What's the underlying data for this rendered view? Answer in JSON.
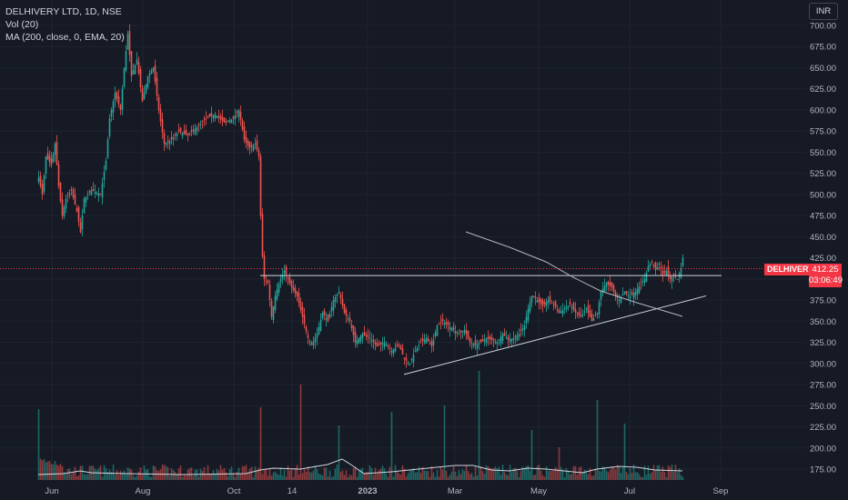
{
  "title": "DELHIVERY LTD, 1D, NSE",
  "indicators": {
    "volume": "Vol (20)",
    "ma": "MA (200, close, 0, EMA, 20)"
  },
  "currency": "INR",
  "symbol": "DELHIVERY",
  "last_price": "412.25",
  "countdown": "03:06:49",
  "colors": {
    "up": "#26a69a",
    "down": "#ef5350",
    "bg": "#161a25",
    "tag": "#f23645",
    "line": "#d1d4dc"
  },
  "chart_data": {
    "type": "candlestick",
    "title": "DELHIVERY LTD, 1D, NSE",
    "y_ticks": [
      175,
      200,
      225,
      250,
      275,
      300,
      325,
      350,
      375,
      400,
      425,
      450,
      475,
      500,
      525,
      550,
      575,
      600,
      625,
      650,
      675,
      700
    ],
    "y_tick_labels": [
      "175.00",
      "200.00",
      "225.00",
      "250.00",
      "275.00",
      "300.00",
      "325.00",
      "350.00",
      "375.00",
      "400.00",
      "425.00",
      "450.00",
      "475.00",
      "500.00",
      "525.00",
      "550.00",
      "575.00",
      "600.00",
      "625.00",
      "650.00",
      "675.00",
      "700.00"
    ],
    "x_labels": [
      "Jun",
      "Aug",
      "Oct",
      "14",
      "2023",
      "Mar",
      "May",
      "Jul",
      "Sep"
    ],
    "ylim": [
      160,
      712
    ],
    "last_price": 412.25,
    "trendlines": [
      {
        "name": "horizontal-resistance",
        "points": [
          [
            "Oct 2022",
            404
          ],
          [
            "Aug 2023",
            404
          ]
        ]
      },
      {
        "name": "rising-support",
        "points": [
          [
            "Jan 2023",
            287
          ],
          [
            "Aug 2023",
            380
          ]
        ]
      },
      {
        "name": "descending-line",
        "points": [
          [
            "Feb 2023",
            458
          ],
          [
            "Aug 2023",
            356
          ]
        ]
      }
    ],
    "close_series": [
      {
        "date": "Jun 2022",
        "close": 540
      },
      {
        "date": "Jun 2022",
        "close": 520
      },
      {
        "date": "Jul 2022",
        "close": 480
      },
      {
        "date": "Jul 2022",
        "close": 500
      },
      {
        "date": "Jul 2022",
        "close": 590
      },
      {
        "date": "Aug 2022",
        "close": 680
      },
      {
        "date": "Aug 2022",
        "close": 620
      },
      {
        "date": "Aug 2022",
        "close": 560
      },
      {
        "date": "Sep 2022",
        "close": 580
      },
      {
        "date": "Sep 2022",
        "close": 590
      },
      {
        "date": "Oct 2022",
        "close": 580
      },
      {
        "date": "Oct 2022",
        "close": 555
      },
      {
        "date": "Nov 2022",
        "close": 400
      },
      {
        "date": "Nov 2022",
        "close": 380
      },
      {
        "date": "Dec 2022",
        "close": 360
      },
      {
        "date": "Dec 2022",
        "close": 350
      },
      {
        "date": "Jan 2023",
        "close": 325
      },
      {
        "date": "Jan 2023",
        "close": 305
      },
      {
        "date": "Feb 2023",
        "close": 340
      },
      {
        "date": "Feb 2023",
        "close": 330
      },
      {
        "date": "Mar 2023",
        "close": 330
      },
      {
        "date": "Mar 2023",
        "close": 330
      },
      {
        "date": "Apr 2023",
        "close": 335
      },
      {
        "date": "May 2023",
        "close": 375
      },
      {
        "date": "May 2023",
        "close": 365
      },
      {
        "date": "Jun 2023",
        "close": 360
      },
      {
        "date": "Jun 2023",
        "close": 395
      },
      {
        "date": "Jul 2023",
        "close": 390
      },
      {
        "date": "Jul 2023",
        "close": 410
      },
      {
        "date": "Aug 2023",
        "close": 412
      }
    ]
  }
}
